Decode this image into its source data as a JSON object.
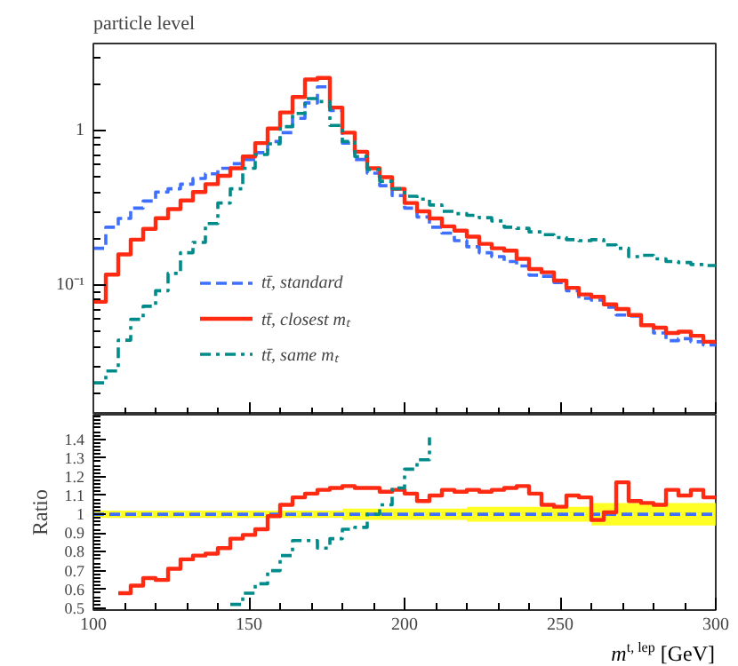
{
  "chart_data": [
    {
      "type": "step",
      "title": "particle level",
      "xlim": [
        100,
        300
      ],
      "xticks": [
        100,
        150,
        200,
        250,
        300
      ],
      "tick_labels": "y",
      "log": true,
      "ylim": [
        0.0145,
        3.66
      ],
      "yticks": [
        {
          "value": 0.1,
          "label": "10⁻¹"
        },
        1
      ],
      "grid": false,
      "legend": "bottom left",
      "x": [
        100,
        104,
        108,
        112,
        116,
        120,
        124,
        128,
        132,
        136,
        140,
        144,
        148,
        152,
        156,
        160,
        164,
        168,
        172,
        176,
        180,
        184,
        188,
        192,
        196,
        200,
        204,
        208,
        212,
        216,
        220,
        224,
        228,
        232,
        236,
        240,
        244,
        248,
        252,
        256,
        260,
        264,
        268,
        272,
        276,
        280,
        284,
        288,
        292,
        296,
        300
      ],
      "series": [
        {
          "name": "tt̄, standard",
          "color": "#3f6fff",
          "line_style": "dashed",
          "values": [
            0.173,
            0.237,
            0.27,
            0.315,
            0.35,
            0.4,
            0.42,
            0.45,
            0.49,
            0.525,
            0.57,
            0.61,
            0.65,
            0.72,
            0.85,
            0.97,
            1.2,
            1.51,
            1.92,
            1.35,
            0.83,
            0.65,
            0.53,
            0.44,
            0.38,
            0.315,
            0.276,
            0.237,
            0.217,
            0.194,
            0.177,
            0.162,
            0.153,
            0.142,
            0.133,
            0.116,
            0.114,
            0.104,
            0.092,
            0.082,
            0.08,
            0.072,
            0.064,
            0.063,
            0.055,
            0.049,
            0.0437,
            0.045,
            0.043,
            0.041,
            0.041
          ]
        },
        {
          "name": "tt̄, closest mₜ",
          "color": "#ff2a12",
          "line_style": "solid",
          "values": [
            0.078,
            0.117,
            0.158,
            0.197,
            0.231,
            0.271,
            0.31,
            0.353,
            0.4,
            0.45,
            0.51,
            0.57,
            0.68,
            0.83,
            1.03,
            1.31,
            1.65,
            2.14,
            2.19,
            1.41,
            0.97,
            0.73,
            0.57,
            0.5,
            0.42,
            0.34,
            0.3,
            0.27,
            0.24,
            0.225,
            0.206,
            0.185,
            0.173,
            0.167,
            0.148,
            0.127,
            0.121,
            0.107,
            0.096,
            0.087,
            0.084,
            0.075,
            0.07,
            0.064,
            0.055,
            0.053,
            0.049,
            0.05,
            0.047,
            0.043,
            0.043
          ]
        },
        {
          "name": "tt̄, same mₜ",
          "color": "#008b8b",
          "line_style": "dashdot",
          "values": [
            0.0233,
            0.0278,
            0.044,
            0.06,
            0.073,
            0.092,
            0.119,
            0.162,
            0.189,
            0.25,
            0.34,
            0.42,
            0.57,
            0.7,
            0.82,
            1.06,
            1.29,
            1.61,
            1.54,
            1.08,
            0.85,
            0.68,
            0.56,
            0.47,
            0.42,
            0.376,
            0.36,
            0.33,
            0.3,
            0.29,
            0.283,
            0.273,
            0.26,
            0.237,
            0.233,
            0.221,
            0.212,
            0.203,
            0.197,
            0.194,
            0.197,
            0.182,
            0.173,
            0.153,
            0.156,
            0.148,
            0.142,
            0.14,
            0.136,
            0.134,
            0.134
          ]
        }
      ]
    },
    {
      "type": "step",
      "xlabel": "m$^{t, lep}$ [GeV]",
      "ylabel": "Ratio",
      "xlim": [
        100,
        300
      ],
      "xticks": [
        100,
        150,
        200,
        250,
        300
      ],
      "ylim": [
        0.49,
        1.53
      ],
      "yticks": [
        0.5,
        0.6,
        0.7,
        0.8,
        0.9,
        1,
        1.1,
        1.2,
        1.3,
        1.4
      ],
      "grid": false,
      "x": [
        100,
        104,
        108,
        112,
        116,
        120,
        124,
        128,
        132,
        136,
        140,
        144,
        148,
        152,
        156,
        160,
        164,
        168,
        172,
        176,
        180,
        184,
        188,
        192,
        196,
        200,
        204,
        208,
        212,
        216,
        220,
        224,
        228,
        232,
        236,
        240,
        244,
        248,
        252,
        256,
        260,
        264,
        268,
        272,
        276,
        280,
        284,
        288,
        292,
        296,
        300
      ],
      "series": [
        {
          "color": "#3f6fff",
          "line_style": "dashed",
          "values": [
            1,
            1,
            1,
            1,
            1,
            1,
            1,
            1,
            1,
            1,
            1,
            1,
            1,
            1,
            1,
            1,
            1,
            1,
            1,
            1,
            1,
            1,
            1,
            1,
            1,
            1,
            1,
            1,
            1,
            1,
            1,
            1,
            1,
            1,
            1,
            1,
            1,
            1,
            1,
            1,
            1,
            1,
            1,
            1,
            1,
            1,
            1,
            1,
            1,
            1,
            1
          ],
          "lower": [
            0.98,
            0.98,
            0.98,
            0.98,
            0.98,
            0.98,
            0.98,
            0.98,
            0.98,
            0.98,
            0.98,
            0.98,
            0.98,
            0.98,
            0.98,
            0.98,
            0.98,
            0.98,
            0.98,
            0.98,
            0.97,
            0.97,
            0.97,
            0.97,
            0.97,
            0.97,
            0.97,
            0.97,
            0.97,
            0.97,
            0.96,
            0.96,
            0.96,
            0.96,
            0.96,
            0.96,
            0.96,
            0.96,
            0.96,
            0.96,
            0.94,
            0.94,
            0.94,
            0.94,
            0.94,
            0.94,
            0.94,
            0.94,
            0.94,
            0.94,
            0.94
          ],
          "upper": [
            1.02,
            1.02,
            1.02,
            1.02,
            1.02,
            1.02,
            1.02,
            1.02,
            1.02,
            1.02,
            1.02,
            1.02,
            1.02,
            1.02,
            1.02,
            1.02,
            1.02,
            1.02,
            1.02,
            1.02,
            1.03,
            1.03,
            1.03,
            1.03,
            1.03,
            1.03,
            1.03,
            1.03,
            1.03,
            1.03,
            1.04,
            1.04,
            1.04,
            1.04,
            1.04,
            1.04,
            1.04,
            1.04,
            1.04,
            1.04,
            1.06,
            1.06,
            1.06,
            1.06,
            1.06,
            1.06,
            1.06,
            1.06,
            1.06,
            1.06,
            1.06
          ]
        },
        {
          "color": "#ff2a12",
          "line_style": "solid",
          "values": [
            null,
            null,
            0.58,
            0.62,
            0.66,
            0.65,
            0.71,
            0.76,
            0.78,
            0.79,
            0.82,
            0.87,
            0.89,
            0.92,
            0.99,
            1.05,
            1.09,
            1.11,
            1.13,
            1.14,
            1.15,
            1.14,
            1.14,
            1.12,
            1.13,
            1.11,
            1.07,
            1.1,
            1.13,
            1.12,
            1.13,
            1.12,
            1.13,
            1.14,
            1.15,
            1.11,
            1.05,
            1.04,
            1.1,
            1.09,
            0.97,
            1.01,
            1.17,
            1.07,
            1.06,
            1.05,
            1.13,
            1.1,
            1.13,
            1.09,
            1.09
          ]
        },
        {
          "color": "#008b8b",
          "line_style": "dashdot",
          "values": [
            null,
            null,
            null,
            null,
            null,
            null,
            null,
            null,
            null,
            null,
            null,
            0.52,
            0.58,
            0.63,
            0.7,
            0.78,
            0.86,
            0.86,
            0.82,
            0.87,
            0.92,
            0.93,
            1.0,
            1.05,
            1.14,
            1.24,
            1.29,
            1.41,
            null,
            null,
            null,
            null,
            null,
            null,
            null,
            null,
            null,
            null,
            null,
            null,
            null,
            null,
            null,
            null,
            null,
            null,
            null,
            null,
            null,
            null,
            null
          ]
        }
      ]
    }
  ]
}
